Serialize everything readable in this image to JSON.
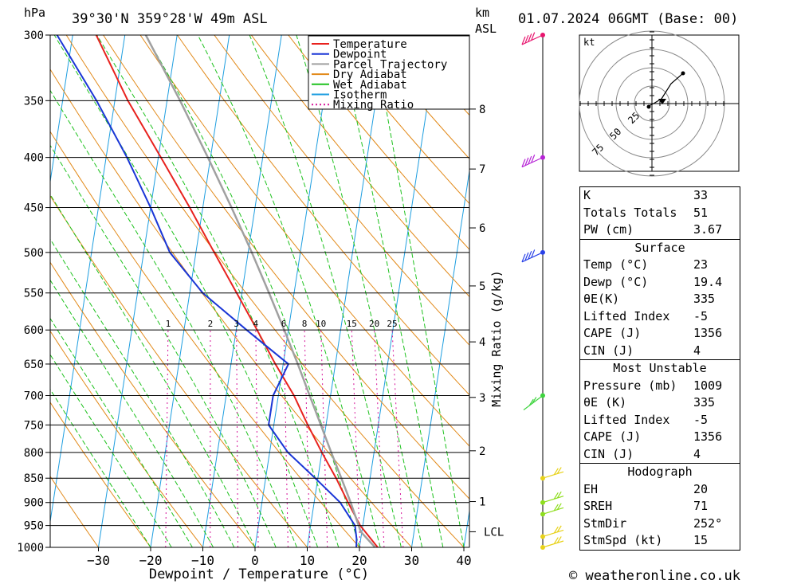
{
  "header": {
    "pressure_unit": "hPa",
    "location": "39°30'N  359°28'W  49m  ASL",
    "height_unit_1": "km",
    "height_unit_2": "ASL",
    "datetime": "01.07.2024  06GMT  (Base: 00)"
  },
  "footer": {
    "credit": "© weatheronline.co.uk"
  },
  "chart_data": {
    "type": "line",
    "subtype": "skew-T log-P",
    "xlabel": "Dewpoint / Temperature (°C)",
    "ylabel": "",
    "x_ticks": [
      -30,
      -20,
      -10,
      0,
      10,
      20,
      30,
      40
    ],
    "xlim": [
      -40,
      40
    ],
    "pressure_levels": [
      300,
      350,
      400,
      450,
      500,
      550,
      600,
      650,
      700,
      750,
      800,
      850,
      900,
      950,
      1000
    ],
    "ylim": [
      1000,
      300
    ],
    "y_scale": "log",
    "mixing_ratio_label": "Mixing Ratio (g/kg)",
    "mixing_ratios": [
      "1",
      "2",
      "3",
      "4",
      "6",
      "8",
      "10",
      "15",
      "20",
      "25"
    ],
    "height_km_ticks": [
      {
        "label": "8",
        "p": 357
      },
      {
        "label": "7",
        "p": 411
      },
      {
        "label": "6",
        "p": 472
      },
      {
        "label": "5",
        "p": 541
      },
      {
        "label": "4",
        "p": 617
      },
      {
        "label": "3",
        "p": 703
      },
      {
        "label": "2",
        "p": 797
      },
      {
        "label": "1",
        "p": 898
      },
      {
        "label": "LCL",
        "p": 964
      }
    ],
    "legend": [
      {
        "name": "Temperature",
        "color": "#e8221e"
      },
      {
        "name": "Dewpoint",
        "color": "#1a36d6"
      },
      {
        "name": "Parcel Trajectory",
        "color": "#a0a0a0"
      },
      {
        "name": "Dry Adiabat",
        "color": "#e28a1a"
      },
      {
        "name": "Wet Adiabat",
        "color": "#1ec21e"
      },
      {
        "name": "Isotherm",
        "color": "#1e9ee0"
      },
      {
        "name": "Mixing Ratio",
        "color": "#d6149a"
      }
    ],
    "series": [
      {
        "name": "Temperature",
        "points": [
          [
            1000,
            23.5
          ],
          [
            950,
            19.5
          ],
          [
            900,
            16.5
          ],
          [
            850,
            13.5
          ],
          [
            800,
            10.0
          ],
          [
            750,
            6.5
          ],
          [
            700,
            3.0
          ],
          [
            650,
            -1.5
          ],
          [
            600,
            -6.0
          ],
          [
            550,
            -11.0
          ],
          [
            500,
            -16.5
          ],
          [
            450,
            -22.5
          ],
          [
            400,
            -29.5
          ],
          [
            350,
            -37.5
          ],
          [
            300,
            -45.5
          ]
        ]
      },
      {
        "name": "Dewpoint",
        "points": [
          [
            1000,
            19.4
          ],
          [
            980,
            19.2
          ],
          [
            950,
            18.5
          ],
          [
            900,
            15.0
          ],
          [
            850,
            9.5
          ],
          [
            800,
            3.5
          ],
          [
            750,
            -1.0
          ],
          [
            700,
            -1.0
          ],
          [
            650,
            1.0
          ],
          [
            600,
            -8.0
          ],
          [
            550,
            -17.5
          ],
          [
            500,
            -25.0
          ],
          [
            450,
            -30.0
          ],
          [
            400,
            -36.0
          ],
          [
            350,
            -43.5
          ],
          [
            300,
            -53.0
          ]
        ]
      },
      {
        "name": "Parcel Trajectory",
        "points": [
          [
            1000,
            23.0
          ],
          [
            964,
            19.8
          ],
          [
            900,
            17.0
          ],
          [
            850,
            14.5
          ],
          [
            800,
            11.8
          ],
          [
            750,
            9.0
          ],
          [
            700,
            6.0
          ],
          [
            650,
            2.8
          ],
          [
            600,
            -0.8
          ],
          [
            550,
            -4.8
          ],
          [
            500,
            -9.3
          ],
          [
            450,
            -14.5
          ],
          [
            400,
            -20.5
          ],
          [
            350,
            -27.5
          ],
          [
            300,
            -36.0
          ]
        ]
      }
    ],
    "wind_barbs": [
      {
        "p": 1000,
        "color": "#e8d21a"
      },
      {
        "p": 975,
        "color": "#e8d21a"
      },
      {
        "p": 925,
        "color": "#8ede1e"
      },
      {
        "p": 900,
        "color": "#8ede1e"
      },
      {
        "p": 850,
        "color": "#e8d21a"
      },
      {
        "p": 700,
        "color": "#3ed43e"
      },
      {
        "p": 500,
        "color": "#2a42e8"
      },
      {
        "p": 400,
        "color": "#b624d6"
      },
      {
        "p": 300,
        "color": "#e8146e"
      }
    ],
    "hodograph": {
      "unit": "kt",
      "ring_labels": [
        "25",
        "50",
        "75"
      ]
    }
  },
  "indices": {
    "rows": [
      {
        "label": "K",
        "value": "33"
      },
      {
        "label": "Totals Totals",
        "value": "51"
      },
      {
        "label": "PW (cm)",
        "value": "3.67"
      }
    ],
    "surface": {
      "title": "Surface",
      "rows": [
        {
          "label": "Temp (°C)",
          "value": "23"
        },
        {
          "label": "Dewp (°C)",
          "value": "19.4"
        },
        {
          "label": "θE(K)",
          "value": "335"
        },
        {
          "label": "Lifted Index",
          "value": "-5"
        },
        {
          "label": "CAPE (J)",
          "value": "1356"
        },
        {
          "label": "CIN (J)",
          "value": "4"
        }
      ]
    },
    "most_unstable": {
      "title": "Most Unstable",
      "rows": [
        {
          "label": "Pressure (mb)",
          "value": "1009"
        },
        {
          "label": "θE (K)",
          "value": "335"
        },
        {
          "label": "Lifted Index",
          "value": "-5"
        },
        {
          "label": "CAPE (J)",
          "value": "1356"
        },
        {
          "label": "CIN (J)",
          "value": "4"
        }
      ]
    },
    "hodograph": {
      "title": "Hodograph",
      "rows": [
        {
          "label": "EH",
          "value": "20"
        },
        {
          "label": "SREH",
          "value": "71"
        },
        {
          "label": "StmDir",
          "value": "252°"
        },
        {
          "label": "StmSpd (kt)",
          "value": "15"
        }
      ]
    }
  }
}
